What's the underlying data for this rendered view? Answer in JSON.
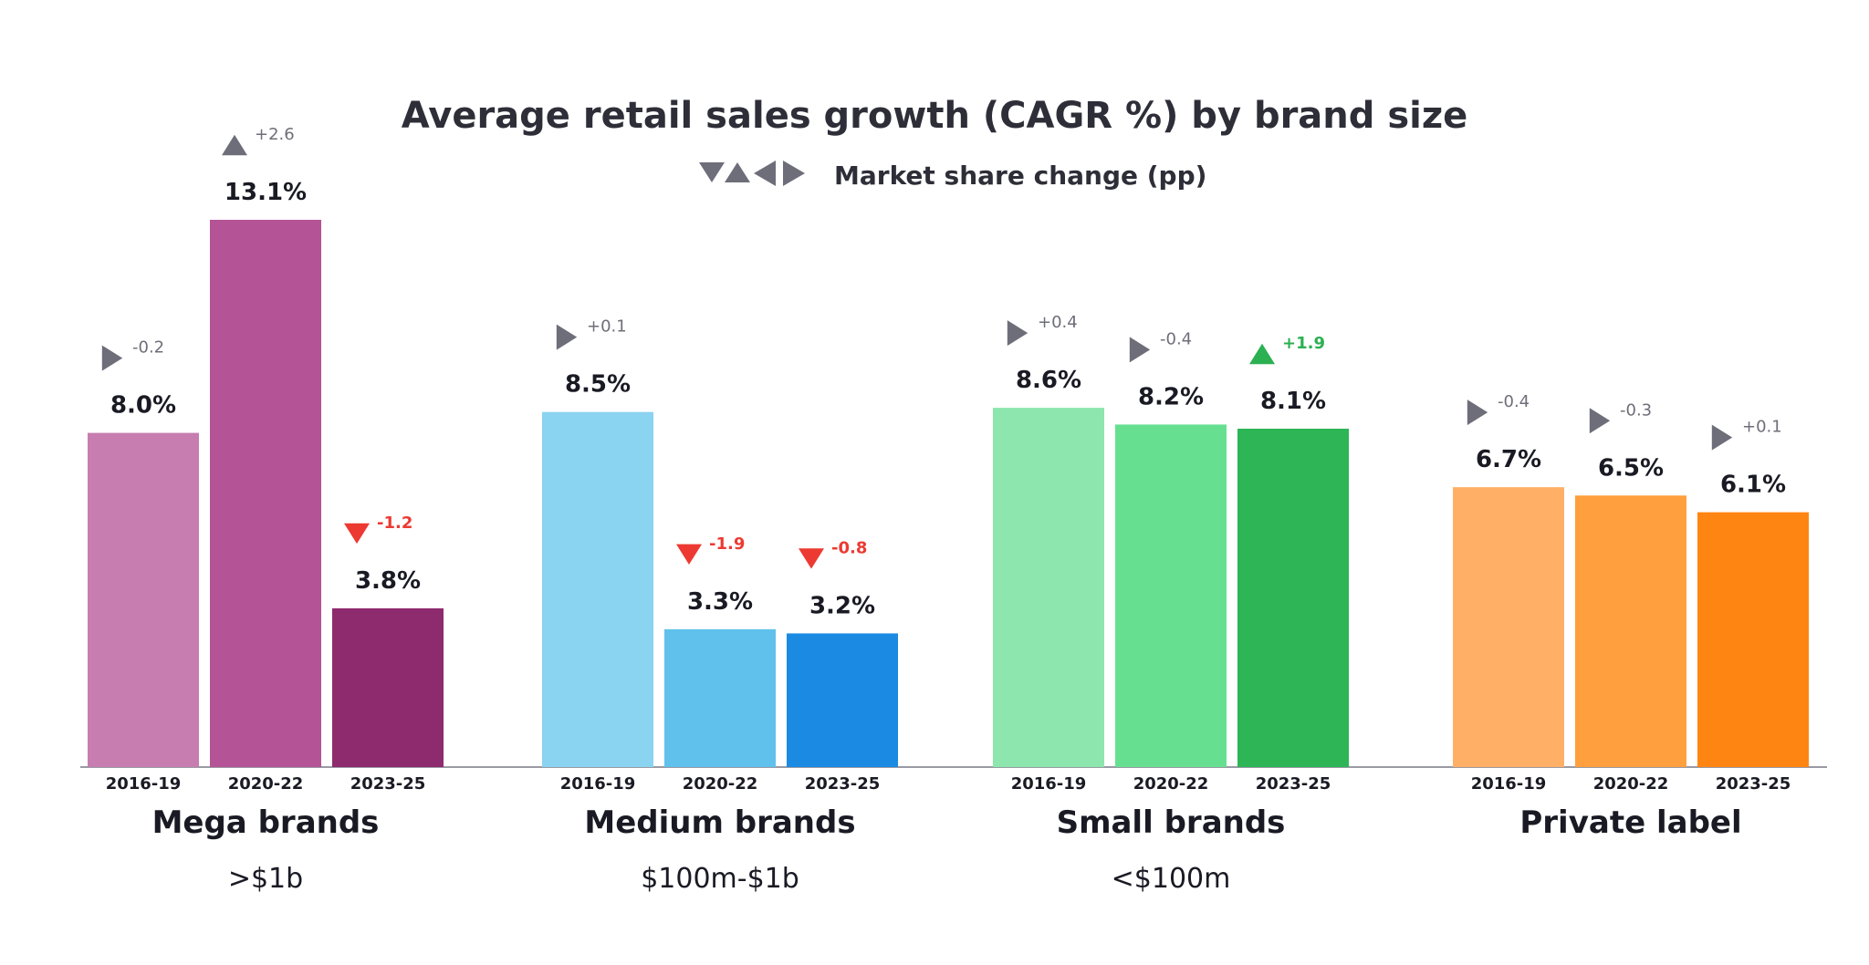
{
  "chart_data": {
    "type": "bar",
    "title": "Average retail sales growth (CAGR %) by brand size",
    "legend": {
      "label": "Market share change (pp)",
      "icons": [
        "triangle-down-icon",
        "triangle-up-icon",
        "triangle-left-icon",
        "triangle-right-icon"
      ],
      "color": "#6e6e7a"
    },
    "ylim": [
      0,
      14
    ],
    "periods": [
      "2016-19",
      "2020-22",
      "2023-25"
    ],
    "groups": [
      {
        "name": "Mega brands",
        "sub": ">$1b",
        "values": [
          8.0,
          13.1,
          3.8
        ],
        "value_labels": [
          "8.0%",
          "13.1%",
          "3.8%"
        ],
        "share_change": [
          "-0.2",
          "+2.6",
          "-1.2"
        ],
        "share_dir": [
          "right",
          "up",
          "down"
        ],
        "colors": [
          "#c77daf",
          "#b45496",
          "#8e2a6e"
        ]
      },
      {
        "name": "Medium brands",
        "sub": "$100m-$1b",
        "values": [
          8.5,
          3.3,
          3.2
        ],
        "value_labels": [
          "8.5%",
          "3.3%",
          "3.2%"
        ],
        "share_change": [
          "+0.1",
          "-1.9",
          "-0.8"
        ],
        "share_dir": [
          "right",
          "down",
          "down"
        ],
        "colors": [
          "#8ad3f1",
          "#5fc1ec",
          "#1b8ae3"
        ]
      },
      {
        "name": "Small brands",
        "sub": "<$100m",
        "values": [
          8.6,
          8.2,
          8.1
        ],
        "value_labels": [
          "8.6%",
          "8.2%",
          "8.1%"
        ],
        "share_change": [
          "+0.4",
          "-0.4",
          "+1.9"
        ],
        "share_dir": [
          "right",
          "right",
          "up"
        ],
        "colors": [
          "#8ce6ad",
          "#66e090",
          "#2db556"
        ]
      },
      {
        "name": "Private label",
        "sub": "",
        "values": [
          6.7,
          6.5,
          6.1
        ],
        "value_labels": [
          "6.7%",
          "6.5%",
          "6.1%"
        ],
        "share_change": [
          "-0.4",
          "-0.3",
          "+0.1"
        ],
        "share_dir": [
          "right",
          "right",
          "right"
        ],
        "colors": [
          "#ffb066",
          "#ff9f3d",
          "#ff8512"
        ]
      }
    ],
    "marker_colors": {
      "neutral": "#6e6e7a",
      "down": "#ec3a32",
      "up": "#2bb052"
    }
  }
}
